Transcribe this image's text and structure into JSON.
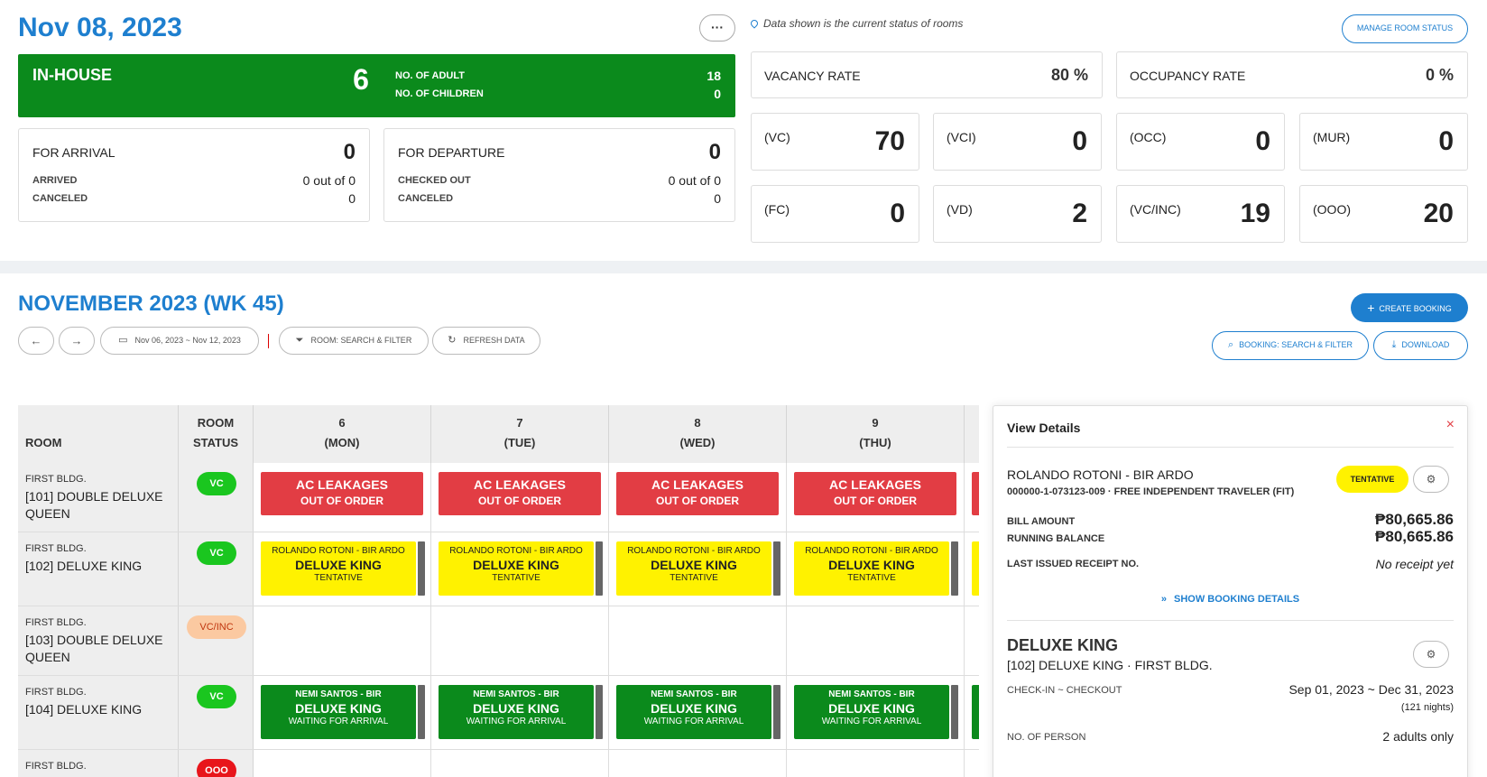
{
  "header": {
    "date": "Nov 08, 2023",
    "more_label": "···",
    "note": "Data shown is the current status of rooms",
    "manage_label": "MANAGE ROOM STATUS"
  },
  "inhouse": {
    "label": "IN-HOUSE",
    "count": "6",
    "adult_label": "NO. OF ADULT",
    "adult_value": "18",
    "children_label": "NO. OF CHILDREN",
    "children_value": "0"
  },
  "arrival": {
    "title": "FOR ARRIVAL",
    "count": "0",
    "k1": "ARRIVED",
    "v1": "0 out of 0",
    "k2": "CANCELED",
    "v2": "0"
  },
  "departure": {
    "title": "FOR DEPARTURE",
    "count": "0",
    "k1": "CHECKED OUT",
    "v1": "0 out of 0",
    "k2": "CANCELED",
    "v2": "0"
  },
  "rates": {
    "vacancy_label": "VACANCY RATE",
    "vacancy_value": "80 %",
    "occupancy_label": "OCCUPANCY RATE",
    "occupancy_value": "0 %"
  },
  "stats": [
    {
      "code": "(VC)",
      "value": "70"
    },
    {
      "code": "(VCI)",
      "value": "0"
    },
    {
      "code": "(OCC)",
      "value": "0"
    },
    {
      "code": "(MUR)",
      "value": "0"
    },
    {
      "code": "(FC)",
      "value": "0"
    },
    {
      "code": "(VD)",
      "value": "2"
    },
    {
      "code": "(VC/INC)",
      "value": "19"
    },
    {
      "code": "(OOO)",
      "value": "20"
    }
  ],
  "calendar": {
    "title": "NOVEMBER 2023 (WK 45)",
    "prev_icon": "←",
    "next_icon": "→",
    "date_range": "Nov 06, 2023 ~ Nov 12, 2023",
    "room_filter": "ROOM: SEARCH & FILTER",
    "refresh": "REFRESH DATA",
    "create": "CREATE BOOKING",
    "booking_filter": "BOOKING: SEARCH & FILTER",
    "download": "DOWNLOAD",
    "col_room": "ROOM",
    "col_status_1": "ROOM",
    "col_status_2": "STATUS",
    "days": [
      {
        "num": "6",
        "name": "(MON)"
      },
      {
        "num": "7",
        "name": "(TUE)"
      },
      {
        "num": "8",
        "name": "(WED)"
      },
      {
        "num": "9",
        "name": "(THU)"
      }
    ]
  },
  "rooms": [
    {
      "building": "FIRST BLDG.",
      "name": "[101] DOUBLE DELUXE QUEEN",
      "status": "VC"
    },
    {
      "building": "FIRST BLDG.",
      "name": "[102] DELUXE KING",
      "status": "VC"
    },
    {
      "building": "FIRST BLDG.",
      "name": "[103] DOUBLE DELUXE QUEEN",
      "status": "VC/INC"
    },
    {
      "building": "FIRST BLDG.",
      "name": "[104] DELUXE KING",
      "status": "VC"
    },
    {
      "building": "FIRST BLDG.",
      "name": "",
      "status": "OOO"
    }
  ],
  "blocks": {
    "ooo": {
      "line1": "AC LEAKAGES",
      "line2": "OUT OF ORDER"
    },
    "tentative": {
      "guest": "ROLANDO ROTONI - BIR ARDO",
      "room": "DELUXE KING",
      "status": "TENTATIVE"
    },
    "waiting": {
      "guest": "NEMI SANTOS - BIR",
      "room": "DELUXE KING",
      "status": "WAITING FOR ARRIVAL"
    }
  },
  "details": {
    "title": "View Details",
    "close_icon": "×",
    "guest": "ROLANDO ROTONI - BIR ARDO",
    "ref": "000000-1-073123-009 · FREE INDEPENDENT TRAVELER (FIT)",
    "status": "TENTATIVE",
    "bill_label": "BILL AMOUNT",
    "bill_value": "₱80,665.86",
    "balance_label": "RUNNING BALANCE",
    "balance_value": "₱80,665.86",
    "receipt_label": "LAST ISSUED RECEIPT NO.",
    "receipt_value": "No receipt yet",
    "show_label": "SHOW BOOKING DETAILS",
    "room_title": "DELUXE KING",
    "room_sub": "[102] DELUXE KING · FIRST BLDG.",
    "checkin_label": "CHECK-IN ~ CHECKOUT",
    "checkin_value": "Sep 01, 2023 ~ Dec 31, 2023",
    "nights": "(121 nights)",
    "person_label": "NO. OF PERSON",
    "person_value": "2 adults only"
  },
  "colors": {
    "accent": "#1e7fcf",
    "inhouse": "#0b8a1c",
    "ooo_block": "#e23d44",
    "tentative": "#fff200",
    "vc_badge": "#1ac61f"
  }
}
